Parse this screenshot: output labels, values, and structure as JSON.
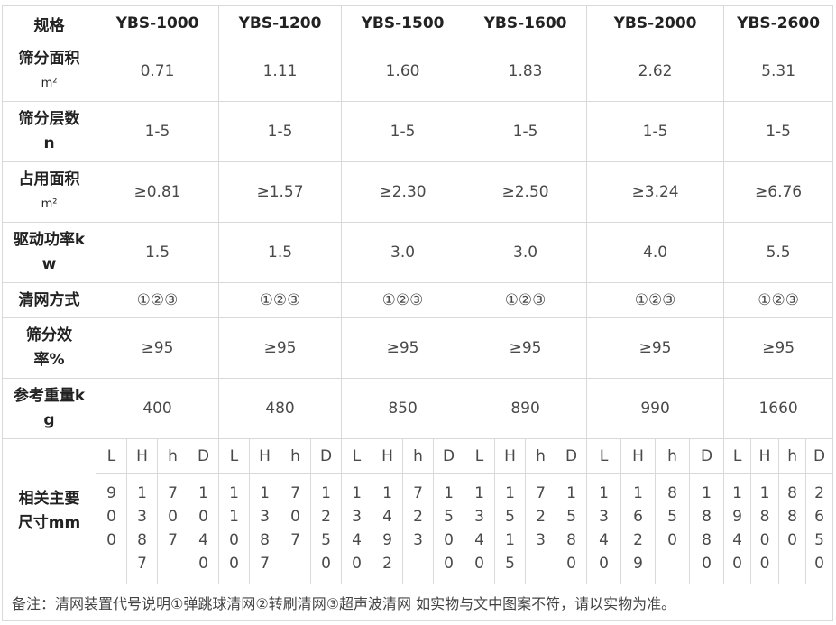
{
  "header": {
    "label": "规格",
    "models": [
      "YBS-1000",
      "YBS-1200",
      "YBS-1500",
      "YBS-1600",
      "YBS-2000",
      "YBS-2600"
    ]
  },
  "rows": [
    {
      "label": [
        "筛分面积",
        "m²"
      ],
      "values": [
        "0.71",
        "1.11",
        "1.60",
        "1.83",
        "2.62",
        "5.31"
      ]
    },
    {
      "label": [
        "筛分层数",
        "n"
      ],
      "values": [
        "1-5",
        "1-5",
        "1-5",
        "1-5",
        "1-5",
        "1-5"
      ]
    },
    {
      "label": [
        "占用面积",
        "m²"
      ],
      "values": [
        "≥0.81",
        "≥1.57",
        "≥2.30",
        "≥2.50",
        "≥3.24",
        "≥6.76"
      ]
    },
    {
      "label": [
        "驱动功率k",
        "w"
      ],
      "values": [
        "1.5",
        "1.5",
        "3.0",
        "3.0",
        "4.0",
        "5.5"
      ]
    },
    {
      "label": [
        "清网方式"
      ],
      "values": [
        "①②③",
        "①②③",
        "①②③",
        "①②③",
        "①②③",
        "①②③"
      ]
    },
    {
      "label": [
        "筛分效",
        "率%"
      ],
      "values": [
        "≥95",
        "≥95",
        "≥95",
        "≥95",
        "≥95",
        "≥95"
      ]
    },
    {
      "label": [
        "参考重量k",
        "g"
      ],
      "values": [
        "400",
        "480",
        "850",
        "890",
        "990",
        "1660"
      ]
    }
  ],
  "dimensions": {
    "label": [
      "相关主要",
      "尺寸mm"
    ],
    "sub_headers": [
      "L",
      "H",
      "h",
      "D"
    ],
    "models": [
      {
        "L": "900",
        "H": "1387",
        "h": "707",
        "D": "1040"
      },
      {
        "L": "1100",
        "H": "1387",
        "h": "707",
        "D": "1250"
      },
      {
        "L": "1340",
        "H": "1492",
        "h": "723",
        "D": "1500"
      },
      {
        "L": "1340",
        "H": "1515",
        "h": "723",
        "D": "1580"
      },
      {
        "L": "1340",
        "H": "1629",
        "h": "850",
        "D": "1880"
      },
      {
        "L": "1940",
        "H": "1800",
        "h": "880",
        "D": "2650"
      }
    ]
  },
  "note": "备注：清网装置代号说明①弹跳球清网②转刷清网③超声波清网 如实物与文中图案不符，请以实物为准。"
}
